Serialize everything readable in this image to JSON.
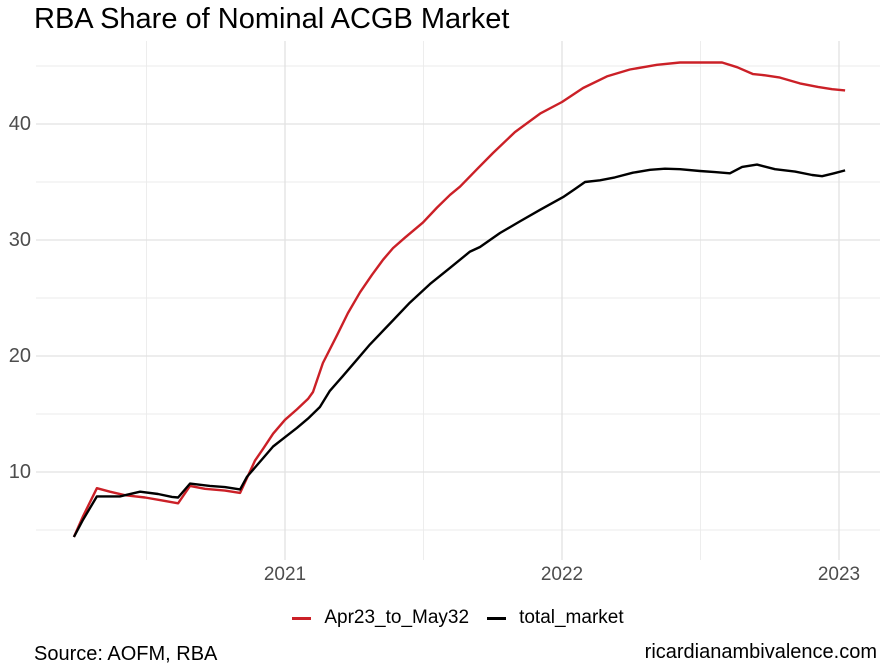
{
  "title": "RBA Share of Nominal ACGB Market",
  "footer": {
    "source": "Source: AOFM, RBA",
    "site": "ricardianambivalence.com"
  },
  "colors": {
    "background": "#ffffff",
    "title_text": "#000000",
    "axis_text": "#4d4d4d",
    "grid_major": "#e2e2e2",
    "grid_minor": "#ebebeb",
    "series_red": "#cb2027",
    "series_black": "#000000"
  },
  "chart_data": {
    "type": "line",
    "title": "RBA Share of Nominal ACGB Market",
    "xlabel": "",
    "ylabel": "",
    "grid": true,
    "legend_position": "bottom-center",
    "x_axis": {
      "unit": "year",
      "range": [
        2020.1,
        2023.15
      ],
      "major_ticks": [
        2021,
        2022,
        2023
      ],
      "tick_labels": [
        "2021",
        "2022",
        "2023"
      ],
      "minor_ticks": [
        2020.5,
        2021.5,
        2022.5
      ]
    },
    "y_axis": {
      "range": [
        2.4,
        47.2
      ],
      "major_ticks": [
        10,
        20,
        30,
        40
      ],
      "tick_labels": [
        "10",
        "20",
        "30",
        "40"
      ],
      "minor_ticks": [
        5,
        15,
        25,
        35,
        45
      ]
    },
    "legend": [
      {
        "name": "Apr23_to_May32",
        "color": "#cb2027"
      },
      {
        "name": "total_market",
        "color": "#000000"
      }
    ],
    "series": [
      {
        "name": "Apr23_to_May32",
        "color": "#cb2027",
        "points": [
          [
            2020.238,
            4.4
          ],
          [
            2020.271,
            6.2
          ],
          [
            2020.321,
            8.6
          ],
          [
            2020.368,
            8.3
          ],
          [
            2020.422,
            8.0
          ],
          [
            2020.495,
            7.8
          ],
          [
            2020.556,
            7.55
          ],
          [
            2020.614,
            7.3
          ],
          [
            2020.657,
            8.8
          ],
          [
            2020.711,
            8.55
          ],
          [
            2020.783,
            8.4
          ],
          [
            2020.838,
            8.2
          ],
          [
            2020.863,
            9.5
          ],
          [
            2020.892,
            11.0
          ],
          [
            2020.921,
            12.0
          ],
          [
            2020.957,
            13.3
          ],
          [
            2021.0,
            14.5
          ],
          [
            2021.043,
            15.4
          ],
          [
            2021.083,
            16.3
          ],
          [
            2021.101,
            16.9
          ],
          [
            2021.137,
            19.4
          ],
          [
            2021.188,
            21.8
          ],
          [
            2021.227,
            23.7
          ],
          [
            2021.271,
            25.5
          ],
          [
            2021.314,
            27.0
          ],
          [
            2021.354,
            28.3
          ],
          [
            2021.39,
            29.3
          ],
          [
            2021.433,
            30.2
          ],
          [
            2021.498,
            31.5
          ],
          [
            2021.549,
            32.8
          ],
          [
            2021.596,
            33.9
          ],
          [
            2021.632,
            34.6
          ],
          [
            2021.693,
            36.1
          ],
          [
            2021.751,
            37.5
          ],
          [
            2021.83,
            39.3
          ],
          [
            2021.921,
            40.9
          ],
          [
            2022.0,
            41.9
          ],
          [
            2022.076,
            43.1
          ],
          [
            2022.162,
            44.1
          ],
          [
            2022.245,
            44.7
          ],
          [
            2022.343,
            45.1
          ],
          [
            2022.426,
            45.3
          ],
          [
            2022.516,
            45.3
          ],
          [
            2022.578,
            45.3
          ],
          [
            2022.632,
            44.9
          ],
          [
            2022.69,
            44.3
          ],
          [
            2022.733,
            44.2
          ],
          [
            2022.787,
            44.0
          ],
          [
            2022.859,
            43.5
          ],
          [
            2022.924,
            43.2
          ],
          [
            2022.975,
            43.0
          ],
          [
            2023.022,
            42.9
          ]
        ]
      },
      {
        "name": "total_market",
        "color": "#000000",
        "points": [
          [
            2020.238,
            4.4
          ],
          [
            2020.271,
            5.9
          ],
          [
            2020.321,
            7.9
          ],
          [
            2020.404,
            7.9
          ],
          [
            2020.477,
            8.3
          ],
          [
            2020.542,
            8.1
          ],
          [
            2020.592,
            7.85
          ],
          [
            2020.614,
            7.8
          ],
          [
            2020.657,
            9.0
          ],
          [
            2020.729,
            8.8
          ],
          [
            2020.783,
            8.7
          ],
          [
            2020.838,
            8.5
          ],
          [
            2020.863,
            9.6
          ],
          [
            2020.892,
            10.4
          ],
          [
            2020.921,
            11.2
          ],
          [
            2020.957,
            12.2
          ],
          [
            2021.0,
            13.0
          ],
          [
            2021.043,
            13.8
          ],
          [
            2021.083,
            14.6
          ],
          [
            2021.126,
            15.6
          ],
          [
            2021.162,
            17.0
          ],
          [
            2021.206,
            18.2
          ],
          [
            2021.253,
            19.5
          ],
          [
            2021.307,
            21.0
          ],
          [
            2021.379,
            22.8
          ],
          [
            2021.451,
            24.6
          ],
          [
            2021.523,
            26.2
          ],
          [
            2021.596,
            27.6
          ],
          [
            2021.668,
            29.0
          ],
          [
            2021.704,
            29.4
          ],
          [
            2021.776,
            30.6
          ],
          [
            2021.848,
            31.6
          ],
          [
            2021.921,
            32.6
          ],
          [
            2022.004,
            33.7
          ],
          [
            2022.047,
            34.4
          ],
          [
            2022.083,
            35.0
          ],
          [
            2022.137,
            35.15
          ],
          [
            2022.191,
            35.4
          ],
          [
            2022.256,
            35.8
          ],
          [
            2022.318,
            36.05
          ],
          [
            2022.372,
            36.15
          ],
          [
            2022.426,
            36.1
          ],
          [
            2022.498,
            35.95
          ],
          [
            2022.552,
            35.85
          ],
          [
            2022.606,
            35.75
          ],
          [
            2022.65,
            36.3
          ],
          [
            2022.704,
            36.5
          ],
          [
            2022.769,
            36.1
          ],
          [
            2022.841,
            35.9
          ],
          [
            2022.903,
            35.6
          ],
          [
            2022.939,
            35.5
          ],
          [
            2022.982,
            35.75
          ],
          [
            2023.022,
            36.0
          ]
        ]
      }
    ]
  }
}
